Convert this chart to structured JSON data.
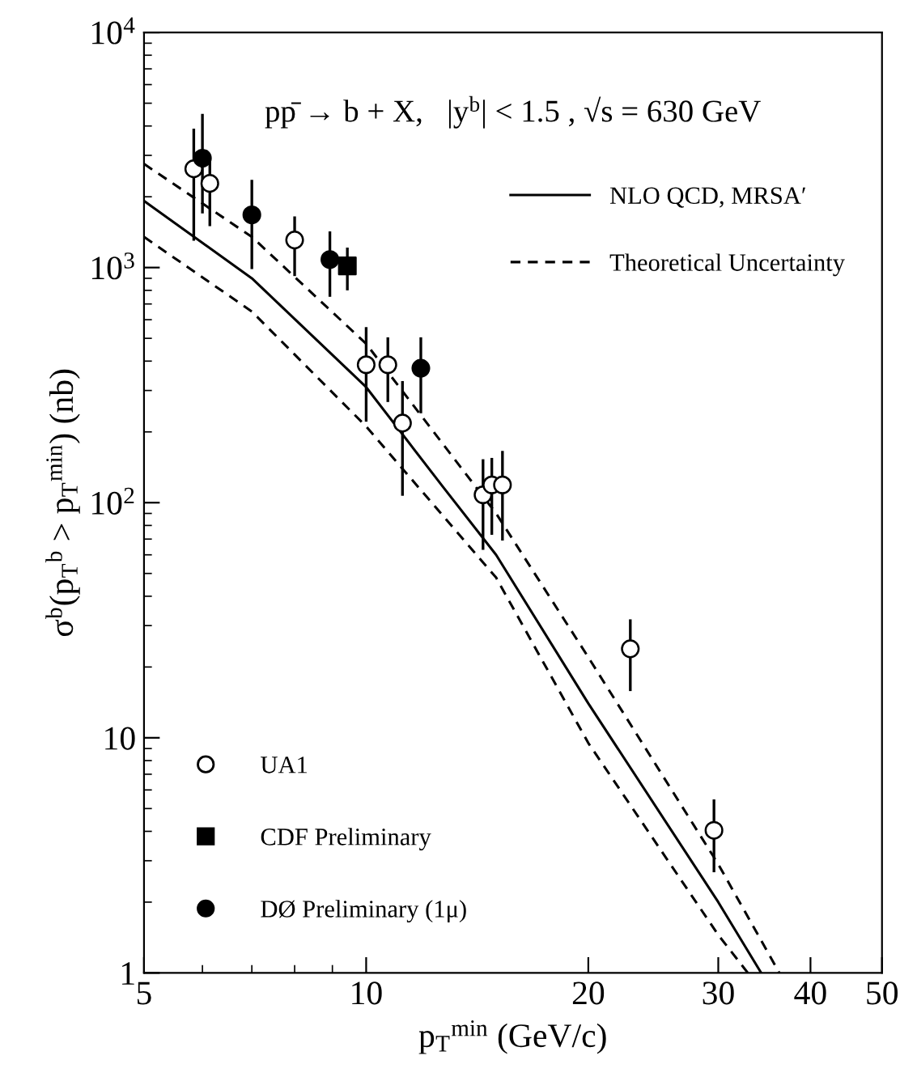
{
  "chart_data": {
    "type": "scatter",
    "xlabel": "p$_{T}$$^{min}$ (GeV/c)",
    "ylabel": "σ$^{b}$(p$_{T}$$^{b}$ > p$_{T}$$^{min}$) (nb)",
    "annotations": [
      "pp̄ → b + X,   |y$^{b}$| < 1.5 , √s = 630 GeV"
    ],
    "log": "xy",
    "xlim": [
      5,
      50
    ],
    "ylim": [
      1,
      10000
    ],
    "xticks": [
      5,
      10,
      20,
      30,
      40,
      50
    ],
    "yticks": [
      1,
      10,
      {
        "value": 100,
        "label": "10$^{2}$"
      },
      {
        "value": 1000,
        "label": "10$^{3}$"
      },
      {
        "value": 10000,
        "label": "10$^{4}$"
      }
    ],
    "grid": false,
    "legend": "right",
    "series": [
      {
        "name": "NLO QCD, MRSA′",
        "type": "line",
        "line_style": "solid",
        "marker": "none",
        "color": "#000000",
        "x": [
          5,
          7,
          10,
          12.7,
          15,
          20,
          30,
          34.3
        ],
        "values": [
          1920,
          900,
          310,
          117,
          60,
          14,
          2.0,
          1
        ]
      },
      {
        "name": "Theoretical Uncertainty",
        "type": "line",
        "line_style": "dashed",
        "marker": "none",
        "color": "#000000",
        "x": [
          5,
          7,
          10,
          15,
          20,
          30,
          36.3
        ],
        "values": [
          2760,
          1350,
          474,
          90,
          22,
          2.9,
          1
        ]
      },
      {
        "type": "line",
        "line_style": "dashed",
        "marker": "none",
        "color": "#000000",
        "x": [
          5,
          7,
          10,
          15,
          20,
          30,
          32.9
        ],
        "values": [
          1350,
          650,
          211,
          48,
          9.5,
          1.45,
          1
        ]
      },
      {
        "name": "UA1",
        "type": "scatter",
        "marker": "circle",
        "color": "#ffffff",
        "x": [
          5.84,
          6.14,
          8.0,
          10.0,
          10.7,
          11.2,
          14.4,
          14.8,
          15.3,
          22.8,
          29.6
        ],
        "values": [
          2630,
          2280,
          1310,
          386,
          386,
          218,
          108,
          119,
          119,
          23.9,
          4.04
        ],
        "errors": [
          [
            1300,
            3900
          ],
          [
            1500,
            3000
          ],
          [
            920,
            1650
          ],
          [
            221,
            558
          ],
          [
            268,
            505
          ],
          [
            107,
            329
          ],
          [
            63,
            153
          ],
          [
            73,
            155
          ],
          [
            69,
            166
          ],
          [
            15.8,
            31.9
          ],
          [
            2.68,
            5.47
          ]
        ]
      },
      {
        "name": "CDF Preliminary",
        "type": "scatter",
        "marker": "square",
        "color": "#000000",
        "x": [
          9.43
        ],
        "values": [
          1016
        ],
        "errors": [
          [
            800,
            1216
          ]
        ]
      },
      {
        "name": "DØ Preliminary (1μ)",
        "type": "scatter",
        "marker": "circle",
        "color": "#000000",
        "x": [
          6.0,
          7.0,
          8.93,
          11.86
        ],
        "values": [
          2920,
          1676,
          1082,
          373
        ],
        "errors": [
          [
            1700,
            4500
          ],
          [
            985,
            2360
          ],
          [
            751,
            1425
          ],
          [
            240,
            505
          ]
        ]
      }
    ]
  }
}
